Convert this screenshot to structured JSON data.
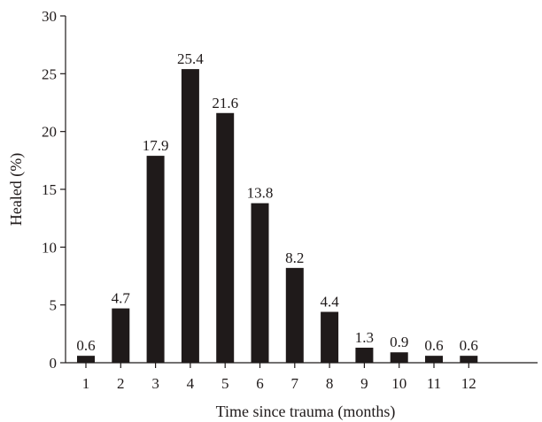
{
  "chart_data": {
    "type": "bar",
    "title": "",
    "xlabel": "Time since trauma (months)",
    "ylabel": "Healed (%)",
    "categories": [
      "1",
      "2",
      "3",
      "4",
      "5",
      "6",
      "7",
      "8",
      "9",
      "10",
      "11",
      "12"
    ],
    "values": [
      0.6,
      4.7,
      17.9,
      25.4,
      21.6,
      13.8,
      8.2,
      4.4,
      1.3,
      0.9,
      0.6,
      0.6
    ],
    "data_labels": [
      "0.6",
      "4.7",
      "17.9",
      "25.4",
      "21.6",
      "13.8",
      "8.2",
      "4.4",
      "1.3",
      "0.9",
      "0.6",
      "0.6"
    ],
    "ylim": [
      0,
      30
    ],
    "yticks": [
      0,
      5,
      10,
      15,
      20,
      25,
      30
    ],
    "ytick_labels": [
      "0",
      "5",
      "10",
      "15",
      "20",
      "25",
      "30"
    ],
    "grid": false,
    "legend": "none",
    "bar_color": "#1f1a1a"
  }
}
